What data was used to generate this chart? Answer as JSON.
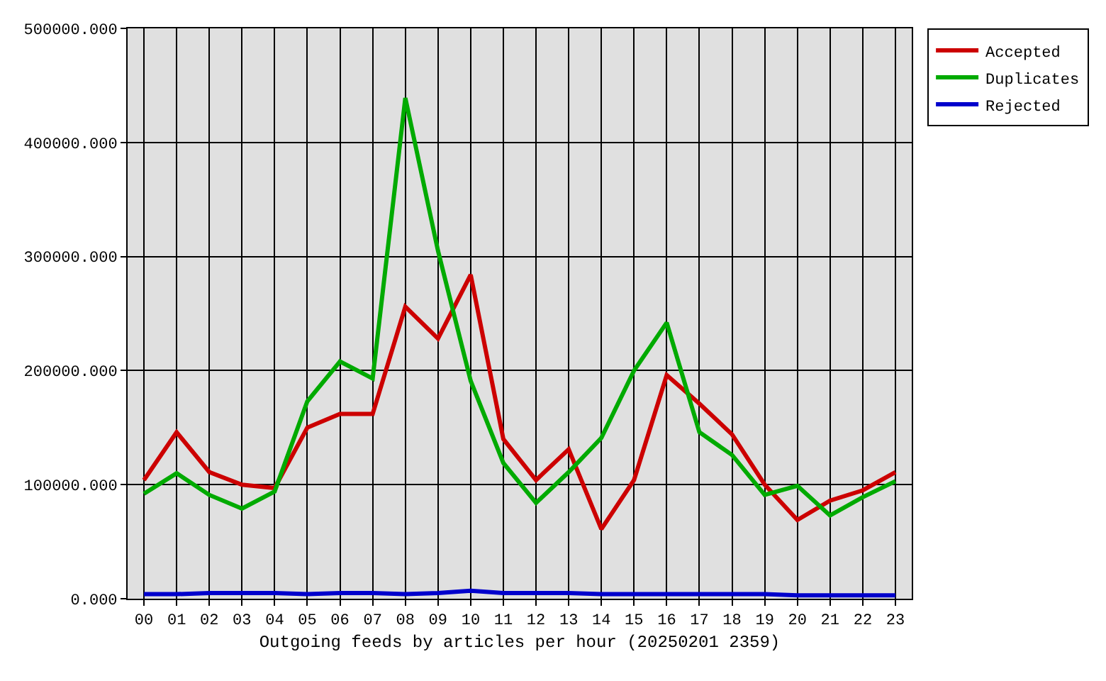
{
  "chart_data": {
    "type": "line",
    "xlabel": "Outgoing feeds by articles per hour (20250201 2359)",
    "categories": [
      "00",
      "01",
      "02",
      "03",
      "04",
      "05",
      "06",
      "07",
      "08",
      "09",
      "10",
      "11",
      "12",
      "13",
      "14",
      "15",
      "16",
      "17",
      "18",
      "19",
      "20",
      "21",
      "22",
      "23"
    ],
    "series": [
      {
        "name": "Accepted",
        "color": "#cc0000",
        "values": [
          104000,
          146000,
          111000,
          100000,
          97000,
          150000,
          162000,
          162000,
          256000,
          228000,
          284000,
          140000,
          104000,
          131000,
          61000,
          104000,
          196000,
          171000,
          144000,
          100000,
          69000,
          86000,
          95000,
          111000
        ]
      },
      {
        "name": "Duplicates",
        "color": "#00aa00",
        "values": [
          92000,
          110000,
          91000,
          79000,
          94000,
          173000,
          208000,
          193000,
          439000,
          305000,
          191000,
          119000,
          84000,
          111000,
          141000,
          200000,
          242000,
          146000,
          126000,
          91000,
          99000,
          73000,
          89000,
          103000
        ]
      },
      {
        "name": "Rejected",
        "color": "#0000cc",
        "values": [
          4000,
          4000,
          5000,
          5000,
          5000,
          4000,
          5000,
          5000,
          4000,
          5000,
          7000,
          5000,
          5000,
          5000,
          4000,
          4000,
          4000,
          4000,
          4000,
          4000,
          3000,
          3000,
          3000,
          3000
        ]
      }
    ],
    "ylim": [
      0,
      500000
    ],
    "yticks": [
      {
        "value": 0,
        "label": "0.000"
      },
      {
        "value": 100000,
        "label": "100000.000"
      },
      {
        "value": 200000,
        "label": "200000.000"
      },
      {
        "value": 300000,
        "label": "300000.000"
      },
      {
        "value": 400000,
        "label": "400000.000"
      },
      {
        "value": 500000,
        "label": "500000.000"
      }
    ],
    "grid": true,
    "legend": "top right"
  }
}
